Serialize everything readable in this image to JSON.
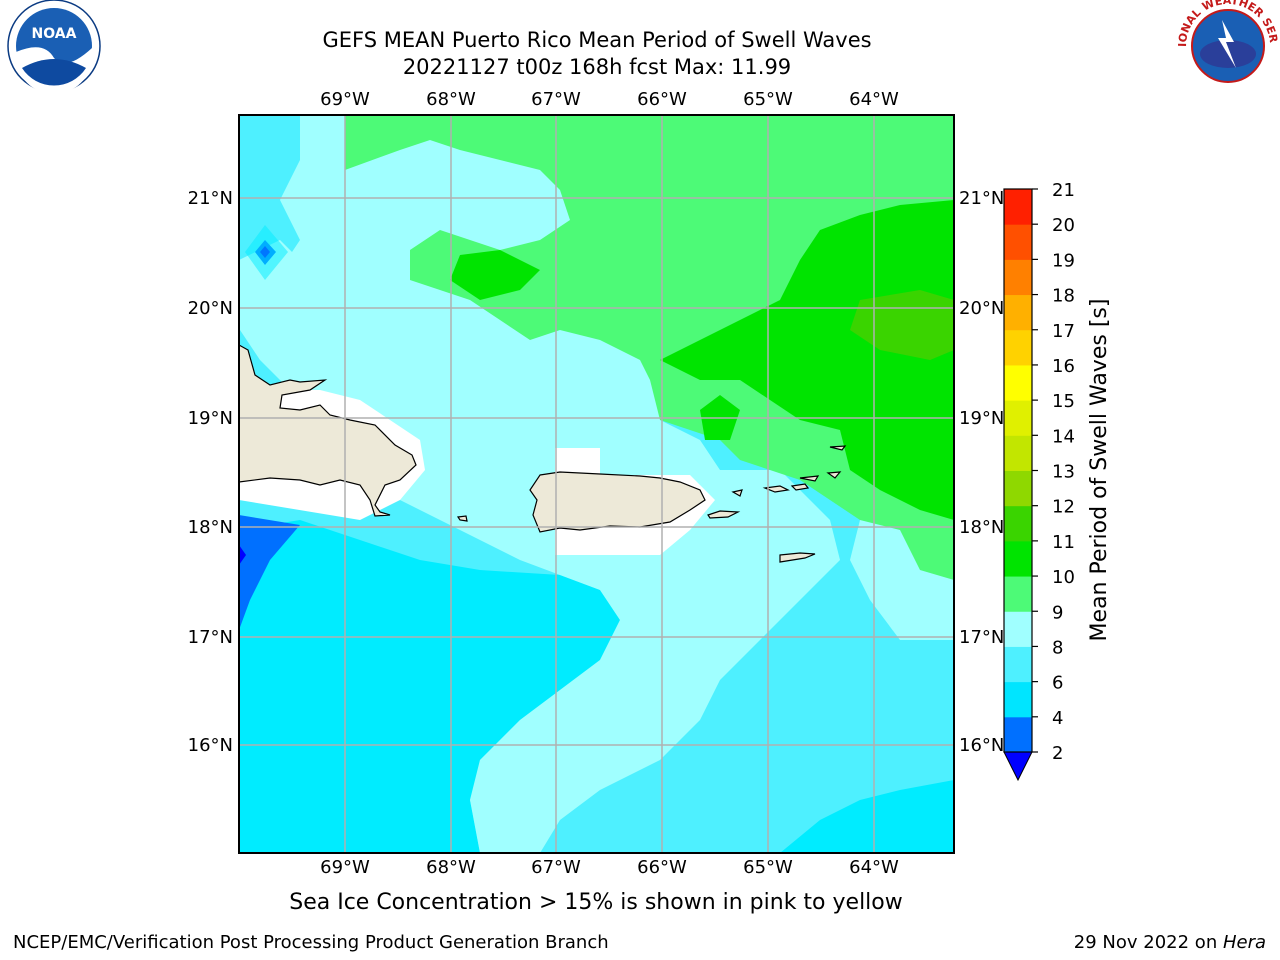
{
  "title": {
    "line1": "GEFS MEAN Puerto Rico Mean Period of Swell Waves",
    "line2": "20221127 t00z 168h fcst   Max: 11.99"
  },
  "axes": {
    "lon_labels": [
      "69°W",
      "68°W",
      "67°W",
      "66°W",
      "65°W",
      "64°W"
    ],
    "lat_labels": [
      "21°N",
      "20°N",
      "19°N",
      "18°N",
      "17°N",
      "16°N"
    ],
    "lon_range": [
      -70.0,
      -63.25
    ],
    "lat_range": [
      15.0,
      21.75
    ],
    "grid": true
  },
  "colorbar": {
    "label": "Mean Period of Swell Waves [s]",
    "ticks": [
      "2",
      "4",
      "6",
      "8",
      "9",
      "10",
      "11",
      "12",
      "13",
      "14",
      "15",
      "16",
      "17",
      "18",
      "19",
      "20",
      "21"
    ],
    "colors": [
      "#0000ff",
      "#0070ff",
      "#00e5ff",
      "#4ef0ff",
      "#a0ffff",
      "#4dfa77",
      "#00e400",
      "#3ad400",
      "#8fd800",
      "#c2e600",
      "#e0f000",
      "#ffff00",
      "#ffd200",
      "#ffb000",
      "#ff8000",
      "#ff5000",
      "#ff2000",
      "#ff0000"
    ],
    "extend": "min"
  },
  "note": "Sea Ice Concentration > 15% is shown in pink to yellow",
  "footer": {
    "left": "NCEP/EMC/Verification Post Processing Product Generation Branch",
    "right_date": "29 Nov 2022 on ",
    "right_host": "Hera"
  },
  "logos": {
    "noaa": "NOAA",
    "nws": "NATIONAL WEATHER SERVICE"
  }
}
